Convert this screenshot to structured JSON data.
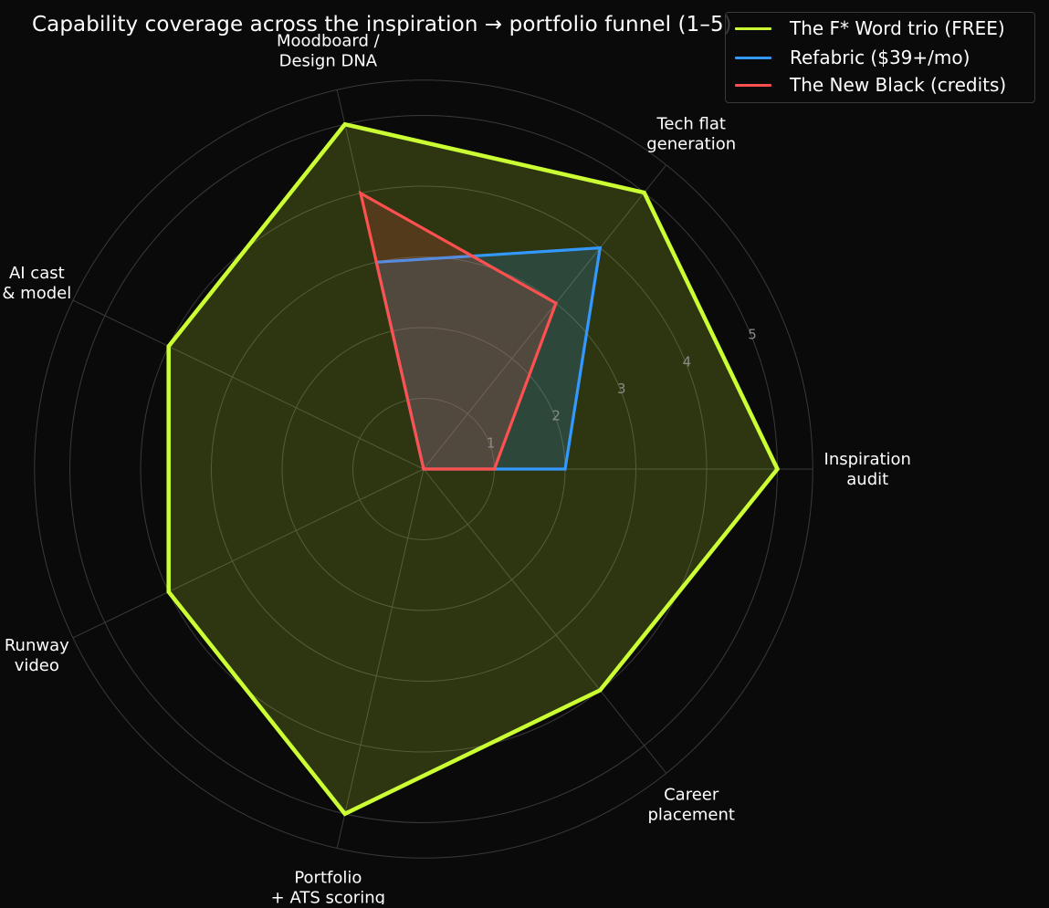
{
  "chart_data": {
    "type": "radar",
    "title": "Capability coverage across the inspiration → portfolio funnel (1–5)",
    "categories": [
      [
        "Inspiration",
        "audit"
      ],
      [
        "Tech flat",
        "generation"
      ],
      [
        "Moodboard /",
        "Design DNA"
      ],
      [
        "AI cast",
        "& model"
      ],
      [
        "Runway",
        "video"
      ],
      [
        "Portfolio",
        "+ ATS scoring"
      ],
      [
        "Career",
        "placement"
      ]
    ],
    "radial_ticks": [
      "1",
      "2",
      "3",
      "4",
      "5"
    ],
    "rlim": [
      0,
      5.5
    ],
    "grid": true,
    "legend_position": "top-right",
    "series": [
      {
        "name": "The F* Word trio (FREE)",
        "color": "#ccff33",
        "values": [
          5,
          5,
          5,
          4,
          4,
          5,
          4
        ]
      },
      {
        "name": "Refabric ($39+/mo)",
        "color": "#3399ff",
        "values": [
          2,
          4,
          3,
          0,
          0,
          0,
          0
        ]
      },
      {
        "name": "The New Black (credits)",
        "color": "#ff5050",
        "values": [
          1,
          3,
          4,
          0,
          0,
          0,
          0
        ]
      }
    ]
  }
}
